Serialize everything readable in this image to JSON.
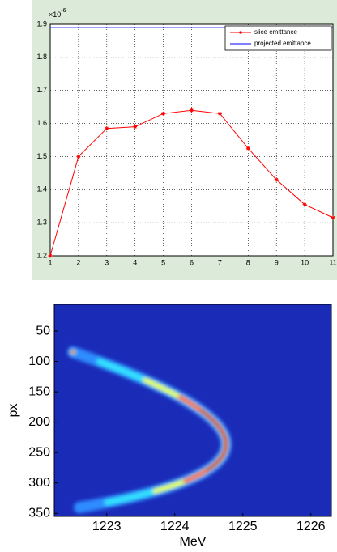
{
  "chart_data": [
    {
      "type": "line",
      "x": [
        1,
        2,
        3,
        4,
        5,
        6,
        7,
        8,
        9,
        10,
        11
      ],
      "xlim": [
        1,
        11
      ],
      "xticks": [
        1,
        2,
        3,
        4,
        5,
        6,
        7,
        8,
        9,
        10,
        11
      ],
      "ylim": [
        1.2,
        1.9
      ],
      "yticks": [
        1.2,
        1.3,
        1.4,
        1.5,
        1.6,
        1.7,
        1.8,
        1.9
      ],
      "y_multiplier": {
        "base": "×10",
        "exponent": "-6"
      },
      "grid": true,
      "legend": "upper right",
      "series": [
        {
          "name": "slice emittance",
          "color": "#ff0000",
          "marker": "*",
          "values": [
            1.2,
            1.5,
            1.585,
            1.59,
            1.63,
            1.64,
            1.63,
            1.525,
            1.43,
            1.355,
            1.315
          ]
        },
        {
          "name": "projected emittance",
          "color": "#0000ff",
          "values": [
            1.89,
            1.89,
            1.89,
            1.89,
            1.89,
            1.89,
            1.89,
            1.89,
            1.89,
            1.89,
            1.89
          ]
        }
      ]
    },
    {
      "type": "heatmap",
      "xlabel": "MeV",
      "ylabel": "px",
      "colormap": "jet",
      "xlim": [
        1222.23,
        1226.3
      ],
      "xticks": [
        1223,
        1224,
        1225,
        1226
      ],
      "ylim": [
        355,
        6
      ],
      "yticks": [
        50,
        100,
        150,
        200,
        250,
        300,
        350
      ]
    }
  ]
}
